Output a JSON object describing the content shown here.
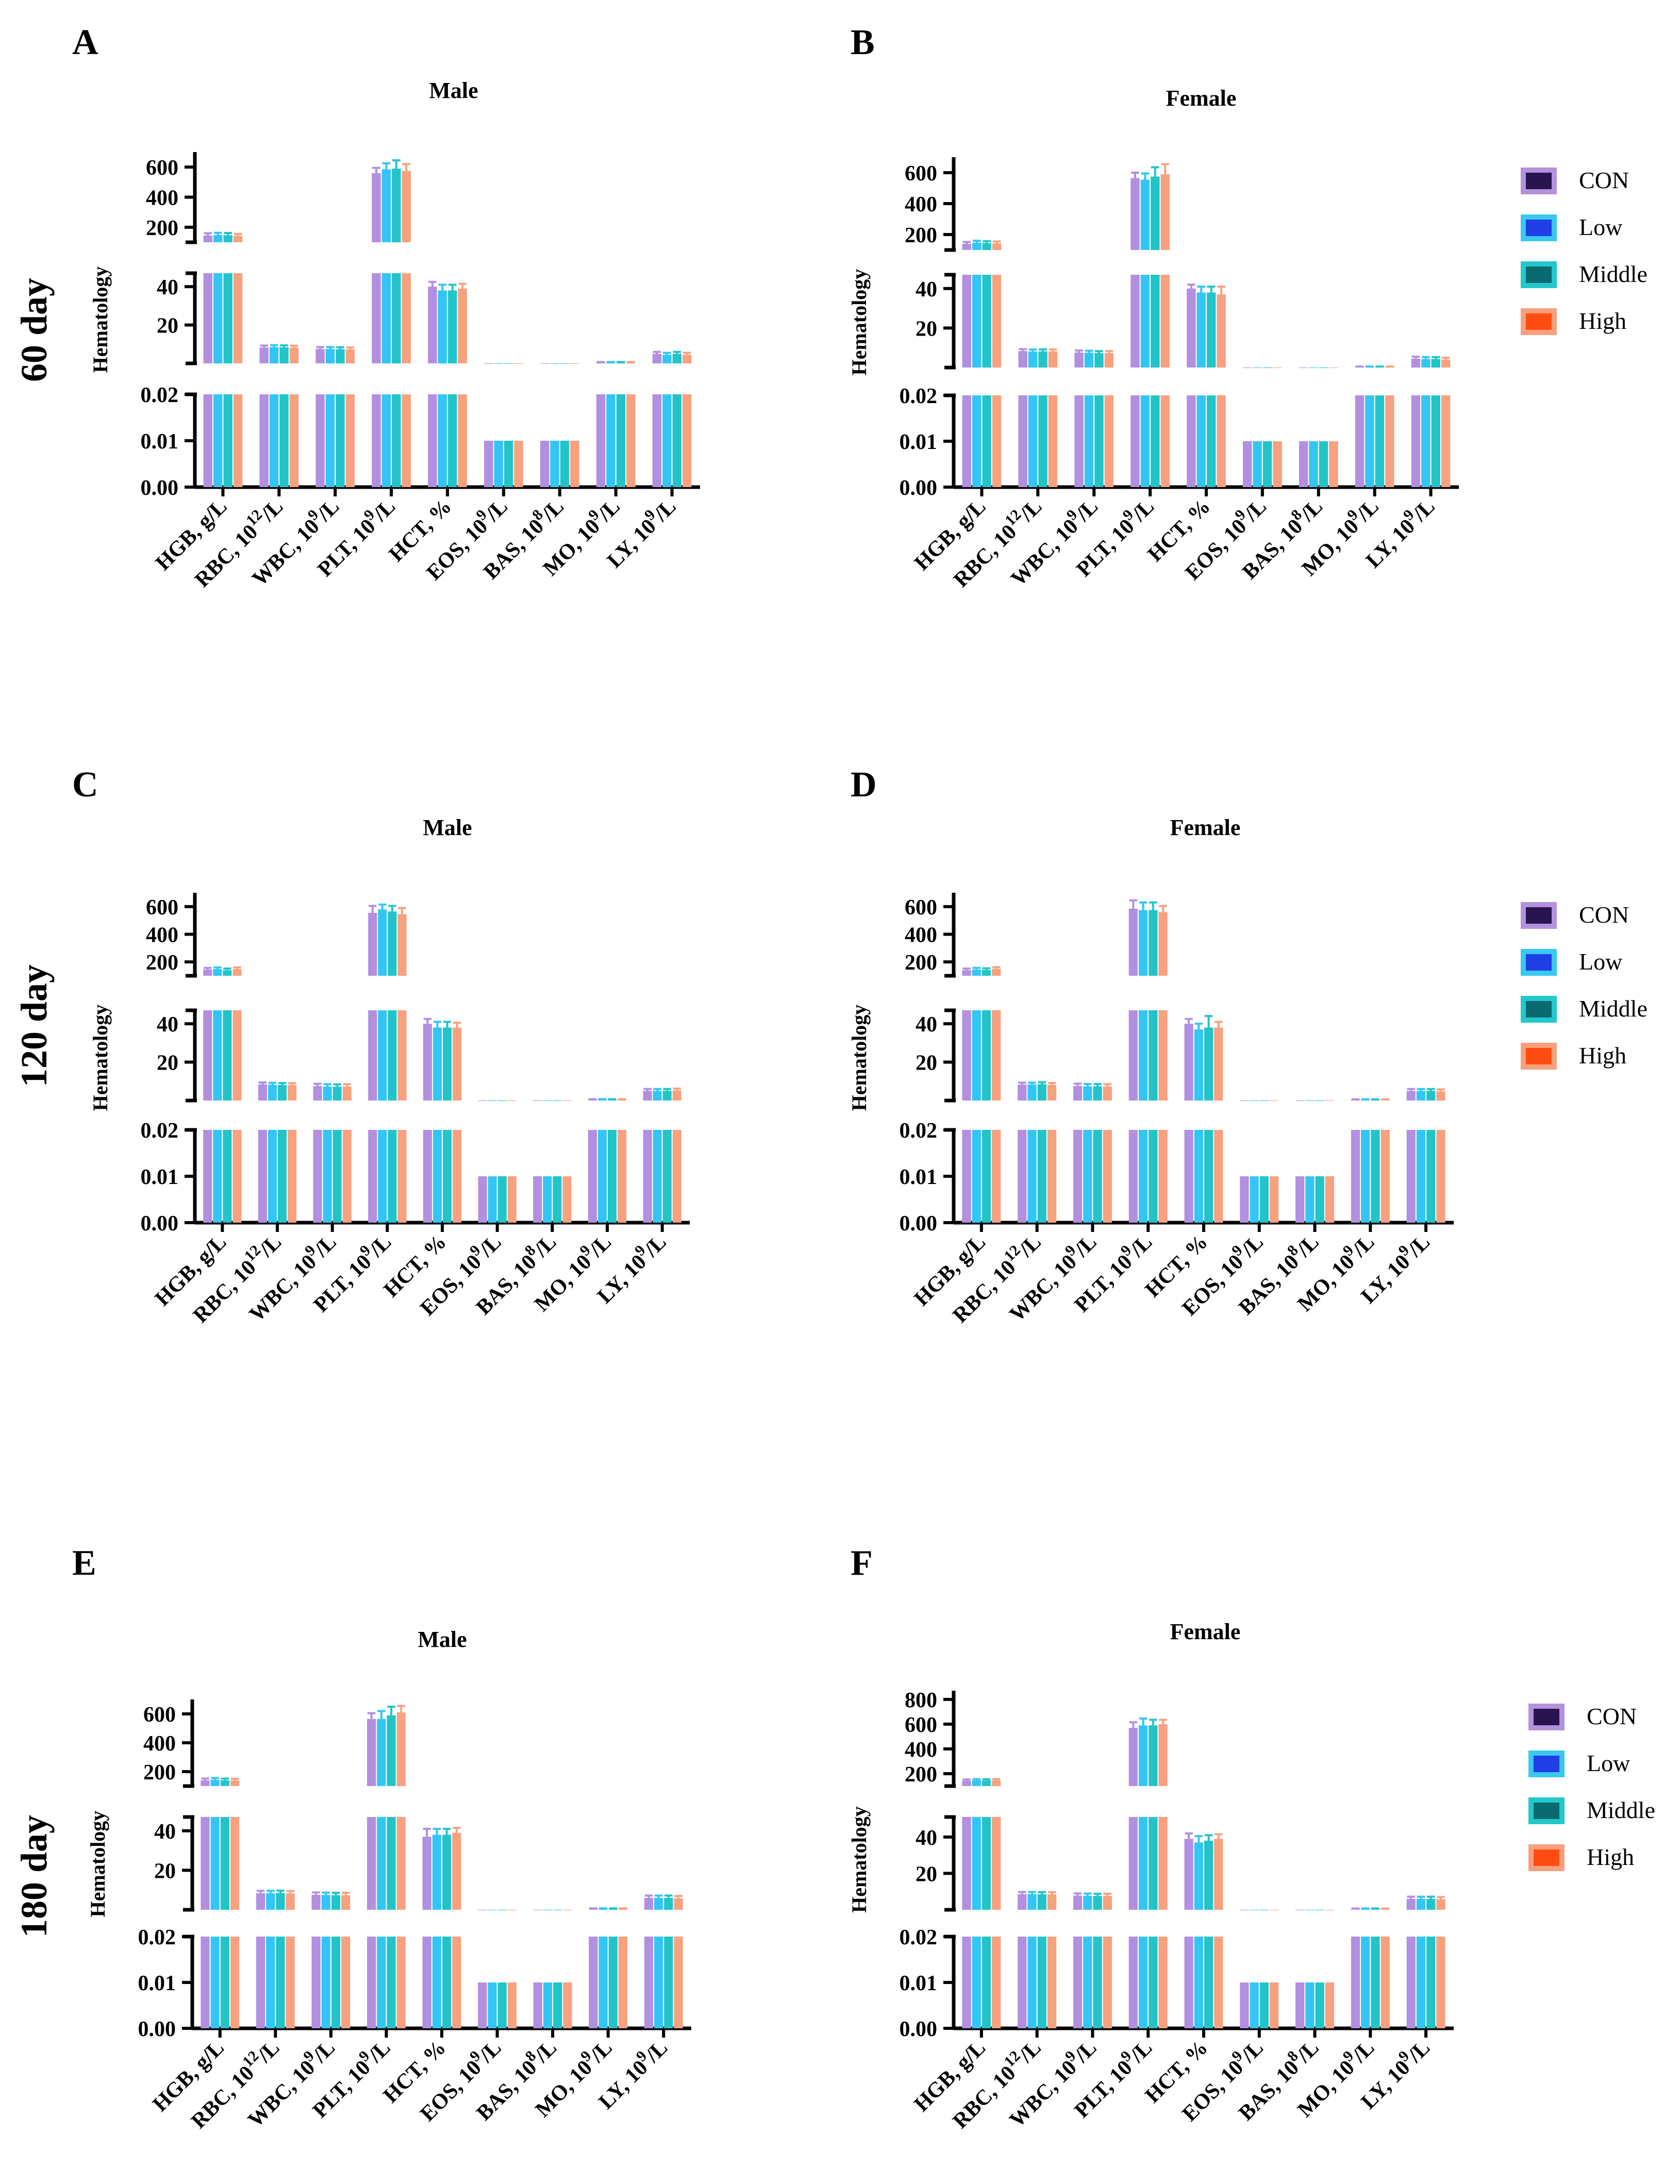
{
  "row_labels": [
    "60 day",
    "120 day",
    "180 day"
  ],
  "legend": {
    "items": [
      {
        "label": "CON",
        "face": "#2a1450",
        "edge": "#b292dc"
      },
      {
        "label": "Low",
        "face": "#1f3ee6",
        "edge": "#38c8f0"
      },
      {
        "label": "Middle",
        "face": "#0b6a70",
        "edge": "#22c8cc"
      },
      {
        "label": "High",
        "face": "#ff4d12",
        "edge": "#f7a07e"
      }
    ]
  },
  "colors": {
    "CON": "#b28fe0",
    "Low": "#33c6f4",
    "Middle": "#22c4c8",
    "High": "#f7a17f"
  },
  "chart_data": [
    {
      "panel": "A",
      "title": "Male",
      "type": "bar",
      "ylabel": "Hematology",
      "categories": [
        "HGB, g/L",
        "RBC, 10¹²/L",
        "WBC, 10⁹/L",
        "PLT, 10⁹/L",
        "HCT, %",
        "EOS, 10⁹/L",
        "BAS, 10⁸/L",
        "MO, 10⁹/L",
        "LY, 10⁹/L"
      ],
      "groups": [
        "CON",
        "Low",
        "Middle",
        "High"
      ],
      "segments": [
        {
          "range": [
            0,
            0.02
          ],
          "ticks": [
            "0.00",
            "0.01",
            "0.02"
          ],
          "tick_values": [
            0,
            0.01,
            0.02
          ]
        },
        {
          "range": [
            0,
            47
          ],
          "ticks": [
            "20",
            "40"
          ],
          "tick_values": [
            20,
            40
          ]
        },
        {
          "range": [
            100,
            700
          ],
          "ticks": [
            "200",
            "400",
            "600"
          ],
          "tick_values": [
            200,
            400,
            600
          ]
        }
      ],
      "series": [
        {
          "name": "CON",
          "values": [
            145,
            8.3,
            7.5,
            560,
            40,
            0.01,
            0.01,
            0.6,
            5.0
          ],
          "errors": [
            15,
            1.0,
            1.0,
            35,
            2.5,
            0,
            0,
            0.1,
            1.0
          ]
        },
        {
          "name": "Low",
          "values": [
            148,
            8.5,
            7.5,
            585,
            38,
            0.01,
            0.01,
            0.6,
            4.5
          ],
          "errors": [
            15,
            1.0,
            1.0,
            40,
            3.0,
            0,
            0,
            0.1,
            1.0
          ]
        },
        {
          "name": "Middle",
          "values": [
            147,
            8.4,
            7.4,
            590,
            38,
            0.01,
            0.01,
            0.6,
            5.0
          ],
          "errors": [
            15,
            1.0,
            1.0,
            55,
            3.0,
            0,
            0,
            0.1,
            1.0
          ]
        },
        {
          "name": "High",
          "values": [
            143,
            8.2,
            7.3,
            575,
            39,
            0.01,
            0.01,
            0.6,
            4.5
          ],
          "errors": [
            12,
            1.0,
            1.0,
            45,
            2.5,
            0,
            0,
            0.1,
            1.0
          ]
        }
      ]
    },
    {
      "panel": "B",
      "title": "Female",
      "type": "bar",
      "ylabel": "Hematology",
      "categories": [
        "HGB, g/L",
        "RBC, 10¹²/L",
        "WBC, 10⁹/L",
        "PLT, 10⁹/L",
        "HCT, %",
        "EOS, 10⁹/L",
        "BAS, 10⁸/L",
        "MO, 10⁹/L",
        "LY, 10⁹/L"
      ],
      "groups": [
        "CON",
        "Low",
        "Middle",
        "High"
      ],
      "segments": [
        {
          "range": [
            0,
            0.02
          ],
          "ticks": [
            "0.00",
            "0.01",
            "0.02"
          ],
          "tick_values": [
            0,
            0.01,
            0.02
          ]
        },
        {
          "range": [
            0,
            47
          ],
          "ticks": [
            "20",
            "40"
          ],
          "tick_values": [
            20,
            40
          ]
        },
        {
          "range": [
            100,
            700
          ],
          "ticks": [
            "200",
            "400",
            "600"
          ],
          "tick_values": [
            200,
            400,
            600
          ]
        }
      ],
      "series": [
        {
          "name": "CON",
          "values": [
            140,
            8.3,
            7.6,
            565,
            40,
            0.01,
            0.01,
            0.4,
            4.5
          ],
          "errors": [
            12,
            1.0,
            1.0,
            35,
            2.0,
            0,
            0,
            0.1,
            1.0
          ]
        },
        {
          "name": "Low",
          "values": [
            148,
            8.1,
            7.5,
            555,
            38,
            0.01,
            0.01,
            0.4,
            4.3
          ],
          "errors": [
            12,
            1.0,
            1.0,
            40,
            3.0,
            0,
            0,
            0.1,
            1.0
          ]
        },
        {
          "name": "Middle",
          "values": [
            145,
            8.2,
            7.3,
            575,
            38,
            0.01,
            0.01,
            0.4,
            4.3
          ],
          "errors": [
            12,
            1.0,
            1.0,
            60,
            3.0,
            0,
            0,
            0.1,
            1.0
          ]
        },
        {
          "name": "High",
          "values": [
            143,
            8.2,
            7.3,
            590,
            37,
            0.01,
            0.01,
            0.4,
            4.0
          ],
          "errors": [
            12,
            1.0,
            1.0,
            65,
            4.0,
            0,
            0,
            0.1,
            1.0
          ]
        }
      ]
    },
    {
      "panel": "C",
      "title": "Male",
      "type": "bar",
      "ylabel": "Hematology",
      "categories": [
        "HGB, g/L",
        "RBC, 10¹²/L",
        "WBC, 10⁹/L",
        "PLT, 10⁹/L",
        "HCT, %",
        "EOS, 10⁹/L",
        "BAS, 10⁸/L",
        "MO, 10⁹/L",
        "LY, 10⁹/L"
      ],
      "groups": [
        "CON",
        "Low",
        "Middle",
        "High"
      ],
      "segments": [
        {
          "range": [
            0,
            0.02
          ],
          "ticks": [
            "0.00",
            "0.01",
            "0.02"
          ],
          "tick_values": [
            0,
            0.01,
            0.02
          ]
        },
        {
          "range": [
            0,
            47
          ],
          "ticks": [
            "20",
            "40"
          ],
          "tick_values": [
            20,
            40
          ]
        },
        {
          "range": [
            100,
            700
          ],
          "ticks": [
            "200",
            "400",
            "600"
          ],
          "tick_values": [
            200,
            400,
            600
          ]
        }
      ],
      "series": [
        {
          "name": "CON",
          "values": [
            145,
            8.4,
            7.5,
            555,
            40,
            0.01,
            0.01,
            0.6,
            5.0
          ],
          "errors": [
            12,
            1.0,
            1.2,
            50,
            2.5,
            0,
            0,
            0.1,
            1.0
          ]
        },
        {
          "name": "Low",
          "values": [
            148,
            8.2,
            7.3,
            580,
            38,
            0.01,
            0.01,
            0.6,
            5.0
          ],
          "errors": [
            12,
            1.0,
            1.2,
            35,
            3.0,
            0,
            0,
            0.1,
            1.0
          ]
        },
        {
          "name": "Middle",
          "values": [
            140,
            8.1,
            7.2,
            565,
            38,
            0.01,
            0.01,
            0.6,
            5.0
          ],
          "errors": [
            12,
            1.0,
            1.2,
            40,
            3.0,
            0,
            0,
            0.1,
            1.0
          ]
        },
        {
          "name": "High",
          "values": [
            148,
            8.0,
            7.3,
            545,
            38,
            0.01,
            0.01,
            0.6,
            5.2
          ],
          "errors": [
            12,
            1.0,
            1.2,
            45,
            2.5,
            0,
            0,
            0.1,
            1.0
          ]
        }
      ]
    },
    {
      "panel": "D",
      "title": "Female",
      "type": "bar",
      "ylabel": "Hematology",
      "categories": [
        "HGB, g/L",
        "RBC, 10¹²/L",
        "WBC, 10⁹/L",
        "PLT, 10⁹/L",
        "HCT, %",
        "EOS, 10⁹/L",
        "BAS, 10⁸/L",
        "MO, 10⁹/L",
        "LY, 10⁹/L"
      ],
      "groups": [
        "CON",
        "Low",
        "Middle",
        "High"
      ],
      "segments": [
        {
          "range": [
            0,
            0.02
          ],
          "ticks": [
            "0.00",
            "0.01",
            "0.02"
          ],
          "tick_values": [
            0,
            0.01,
            0.02
          ]
        },
        {
          "range": [
            0,
            47
          ],
          "ticks": [
            "20",
            "40"
          ],
          "tick_values": [
            20,
            40
          ]
        },
        {
          "range": [
            100,
            700
          ],
          "ticks": [
            "200",
            "400",
            "600"
          ],
          "tick_values": [
            200,
            400,
            600
          ]
        }
      ],
      "series": [
        {
          "name": "CON",
          "values": [
            140,
            8.3,
            7.6,
            585,
            40,
            0.01,
            0.01,
            0.5,
            5.0
          ],
          "errors": [
            12,
            1.0,
            1.2,
            60,
            2.5,
            0,
            0,
            0.1,
            1.0
          ]
        },
        {
          "name": "Low",
          "values": [
            145,
            8.3,
            7.4,
            575,
            37,
            0.01,
            0.01,
            0.5,
            5.0
          ],
          "errors": [
            12,
            1.0,
            1.2,
            55,
            3.0,
            0,
            0,
            0.1,
            1.0
          ]
        },
        {
          "name": "Middle",
          "values": [
            142,
            8.5,
            7.4,
            575,
            38,
            0.01,
            0.01,
            0.5,
            5.0
          ],
          "errors": [
            12,
            1.0,
            1.2,
            55,
            6.0,
            0,
            0,
            0.1,
            1.0
          ]
        },
        {
          "name": "High",
          "values": [
            150,
            8.1,
            7.3,
            560,
            38,
            0.01,
            0.01,
            0.5,
            4.8
          ],
          "errors": [
            12,
            1.0,
            1.2,
            45,
            3.0,
            0,
            0,
            0.1,
            1.0
          ]
        }
      ]
    },
    {
      "panel": "E",
      "title": "Male",
      "type": "bar",
      "ylabel": "Hematology",
      "categories": [
        "HGB, g/L",
        "RBC, 10¹²/L",
        "WBC, 10⁹/L",
        "PLT, 10⁹/L",
        "HCT, %",
        "EOS, 10⁹/L",
        "BAS, 10⁸/L",
        "MO, 10⁹/L",
        "LY, 10⁹/L"
      ],
      "groups": [
        "CON",
        "Low",
        "Middle",
        "High"
      ],
      "segments": [
        {
          "range": [
            0,
            0.02
          ],
          "ticks": [
            "0.00",
            "0.01",
            "0.02"
          ],
          "tick_values": [
            0,
            0.01,
            0.02
          ]
        },
        {
          "range": [
            0,
            47
          ],
          "ticks": [
            "20",
            "40"
          ],
          "tick_values": [
            20,
            40
          ]
        },
        {
          "range": [
            100,
            700
          ],
          "ticks": [
            "200",
            "400",
            "600"
          ],
          "tick_values": [
            200,
            400,
            600
          ]
        }
      ],
      "series": [
        {
          "name": "CON",
          "values": [
            140,
            8.4,
            7.6,
            565,
            37,
            0.01,
            0.01,
            0.6,
            6.0
          ],
          "errors": [
            12,
            1.2,
            1.2,
            40,
            4.0,
            0,
            0,
            0.1,
            1.2
          ]
        },
        {
          "name": "Low",
          "values": [
            143,
            8.4,
            7.5,
            565,
            38,
            0.01,
            0.01,
            0.6,
            6.0
          ],
          "errors": [
            12,
            1.2,
            1.2,
            55,
            3.0,
            0,
            0,
            0.1,
            1.2
          ]
        },
        {
          "name": "Middle",
          "values": [
            140,
            8.5,
            7.4,
            590,
            38,
            0.01,
            0.01,
            0.6,
            6.0
          ],
          "errors": [
            12,
            1.2,
            1.2,
            60,
            3.0,
            0,
            0,
            0.1,
            1.2
          ]
        },
        {
          "name": "High",
          "values": [
            138,
            8.3,
            7.4,
            610,
            39,
            0.01,
            0.01,
            0.6,
            5.8
          ],
          "errors": [
            12,
            1.2,
            1.2,
            45,
            2.5,
            0,
            0,
            0.1,
            1.2
          ]
        }
      ]
    },
    {
      "panel": "F",
      "title": "Female",
      "type": "bar",
      "ylabel": "Hematology",
      "categories": [
        "HGB, g/L",
        "RBC, 10¹²/L",
        "WBC, 10⁹/L",
        "PLT, 10⁹/L",
        "HCT, %",
        "EOS, 10⁹/L",
        "BAS, 10⁸/L",
        "MO, 10⁹/L",
        "LY, 10⁹/L"
      ],
      "groups": [
        "CON",
        "Low",
        "Middle",
        "High"
      ],
      "segments": [
        {
          "range": [
            0,
            0.02
          ],
          "ticks": [
            "0.00",
            "0.01",
            "0.02"
          ],
          "tick_values": [
            0,
            0.01,
            0.02
          ]
        },
        {
          "range": [
            0,
            51
          ],
          "ticks": [
            "20",
            "40"
          ],
          "tick_values": [
            20,
            40
          ]
        },
        {
          "range": [
            100,
            870
          ],
          "ticks": [
            "200",
            "400",
            "600",
            "800"
          ],
          "tick_values": [
            200,
            400,
            600,
            800
          ]
        }
      ],
      "series": [
        {
          "name": "CON",
          "values": [
            143,
            8.6,
            7.8,
            570,
            39,
            0.01,
            0.01,
            0.6,
            6.0
          ],
          "errors": [
            10,
            1.2,
            1.2,
            45,
            3.0,
            0,
            0,
            0.1,
            1.2
          ]
        },
        {
          "name": "Low",
          "values": [
            146,
            8.6,
            7.7,
            590,
            37,
            0.01,
            0.01,
            0.6,
            6.0
          ],
          "errors": [
            10,
            1.2,
            1.2,
            55,
            3.5,
            0,
            0,
            0.1,
            1.2
          ]
        },
        {
          "name": "Middle",
          "values": [
            145,
            8.5,
            7.6,
            590,
            38,
            0.01,
            0.01,
            0.6,
            6.0
          ],
          "errors": [
            10,
            1.2,
            1.2,
            45,
            3.0,
            0,
            0,
            0.1,
            1.2
          ]
        },
        {
          "name": "High",
          "values": [
            146,
            8.5,
            7.6,
            600,
            39,
            0.01,
            0.01,
            0.6,
            5.8
          ],
          "errors": [
            10,
            1.2,
            1.2,
            35,
            2.5,
            0,
            0,
            0.1,
            1.2
          ]
        }
      ]
    }
  ]
}
